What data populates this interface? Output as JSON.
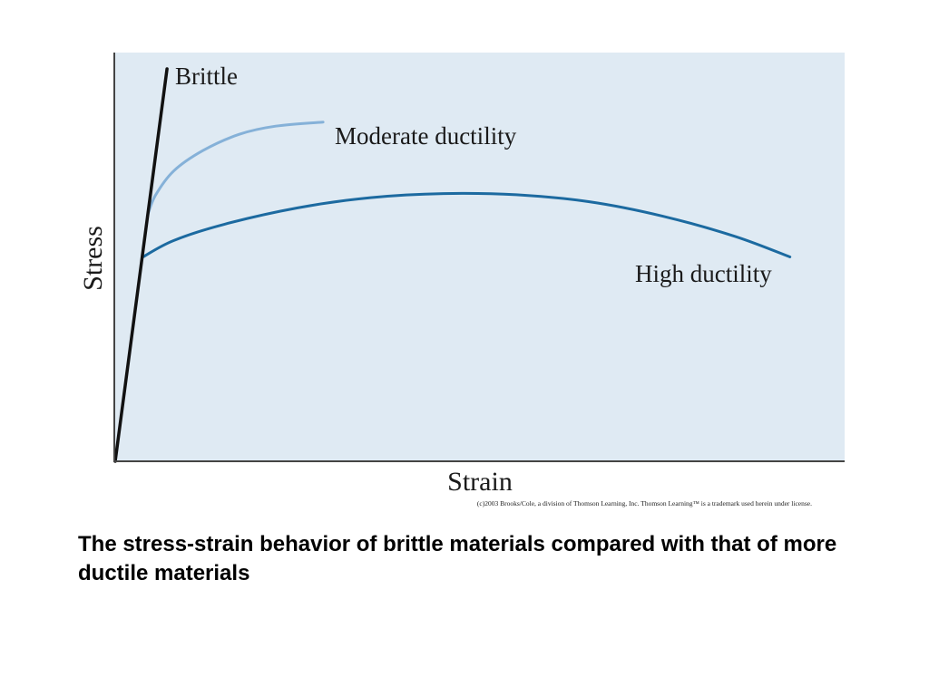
{
  "chart_data": {
    "type": "line",
    "xlabel": "Strain",
    "ylabel": "Stress",
    "xlim": [
      0,
      100
    ],
    "ylim": [
      0,
      100
    ],
    "grid": false,
    "legend": "none",
    "series": [
      {
        "name": "Brittle",
        "color": "#111111",
        "x": [
          0,
          7.1
        ],
        "y": [
          0,
          96
        ]
      },
      {
        "name": "Moderate ductility",
        "color": "#85b1d8",
        "x": [
          4.4,
          5.5,
          8,
          12,
          17,
          22,
          28.5
        ],
        "y": [
          60,
          65,
          71,
          76,
          80,
          82,
          83
        ]
      },
      {
        "name": "High ductility",
        "color": "#1c6aa0",
        "x": [
          3.8,
          8,
          15,
          25,
          35,
          45,
          55,
          65,
          75,
          85,
          92.5
        ],
        "y": [
          50,
          54,
          58,
          62,
          64.5,
          65.5,
          65.2,
          63.5,
          60,
          55,
          50
        ]
      }
    ],
    "annotations": [
      {
        "text": "Brittle",
        "series": 0
      },
      {
        "text": "Moderate ductility",
        "series": 1
      },
      {
        "text": "High ductility",
        "series": 2
      }
    ]
  },
  "credit": "(c)2003 Brooks/Cole, a division of Thomson Learning, Inc.  Thomson Learning™ is a trademark used herein under license.",
  "caption": "The stress-strain behavior of brittle materials compared with that of more ductile materials"
}
